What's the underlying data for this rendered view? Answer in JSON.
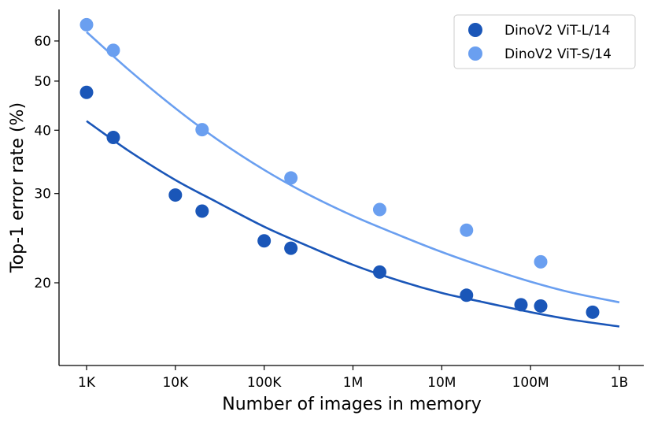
{
  "chart_data": {
    "type": "scatter",
    "xlabel": "Number of images in memory",
    "ylabel": "Top-1 error rate (%)",
    "x_scale": "log",
    "y_scale": "log",
    "xlim": [
      500,
      1000000000
    ],
    "ylim": [
      15.5,
      67
    ],
    "x_ticks": [
      {
        "value": 1000,
        "label": "1K"
      },
      {
        "value": 10000,
        "label": "10K"
      },
      {
        "value": 100000,
        "label": "100K"
      },
      {
        "value": 1000000,
        "label": "1M"
      },
      {
        "value": 10000000,
        "label": "10M"
      },
      {
        "value": 100000000,
        "label": "100M"
      },
      {
        "value": 1000000000,
        "label": "1B"
      }
    ],
    "y_ticks": [
      {
        "value": 20,
        "label": "20"
      },
      {
        "value": 30,
        "label": "30"
      },
      {
        "value": 40,
        "label": "40"
      },
      {
        "value": 50,
        "label": "50"
      },
      {
        "value": 60,
        "label": "60"
      }
    ],
    "grid": false,
    "legend_position": "top-right",
    "series": [
      {
        "name": "DinoV2 ViT-L/14",
        "color": "#1a56b8",
        "points": [
          {
            "x": 1000,
            "y": 47.5
          },
          {
            "x": 2000,
            "y": 38.7
          },
          {
            "x": 10000,
            "y": 29.8
          },
          {
            "x": 20000,
            "y": 27.7
          },
          {
            "x": 100000,
            "y": 24.2
          },
          {
            "x": 200000,
            "y": 23.4
          },
          {
            "x": 2000000,
            "y": 21.0
          },
          {
            "x": 19000000,
            "y": 18.9
          },
          {
            "x": 78000000,
            "y": 18.1
          },
          {
            "x": 130000000,
            "y": 18.0
          },
          {
            "x": 500000000,
            "y": 17.5
          }
        ],
        "fit": [
          {
            "x": 1000,
            "y": 41.7
          },
          {
            "x": 3000,
            "y": 36.4
          },
          {
            "x": 10000,
            "y": 31.9
          },
          {
            "x": 30000,
            "y": 28.8
          },
          {
            "x": 100000,
            "y": 25.8
          },
          {
            "x": 300000,
            "y": 23.7
          },
          {
            "x": 1000000,
            "y": 21.7
          },
          {
            "x": 3000000,
            "y": 20.3
          },
          {
            "x": 10000000,
            "y": 19.1
          },
          {
            "x": 30000000,
            "y": 18.3
          },
          {
            "x": 100000000,
            "y": 17.5
          },
          {
            "x": 300000000,
            "y": 16.9
          },
          {
            "x": 1000000000,
            "y": 16.4
          }
        ]
      },
      {
        "name": "DinoV2 ViT-S/14",
        "color": "#6a9ff0",
        "points": [
          {
            "x": 1000,
            "y": 64.6
          },
          {
            "x": 2000,
            "y": 57.5
          },
          {
            "x": 20000,
            "y": 40.1
          },
          {
            "x": 200000,
            "y": 32.2
          },
          {
            "x": 2000000,
            "y": 27.9
          },
          {
            "x": 19000000,
            "y": 25.4
          },
          {
            "x": 130000000,
            "y": 22.0
          }
        ],
        "fit": [
          {
            "x": 1000,
            "y": 62.5
          },
          {
            "x": 3000,
            "y": 52.6
          },
          {
            "x": 10000,
            "y": 44.2
          },
          {
            "x": 30000,
            "y": 38.3
          },
          {
            "x": 100000,
            "y": 33.4
          },
          {
            "x": 300000,
            "y": 30.0
          },
          {
            "x": 1000000,
            "y": 27.1
          },
          {
            "x": 3000000,
            "y": 25.0
          },
          {
            "x": 10000000,
            "y": 23.0
          },
          {
            "x": 30000000,
            "y": 21.5
          },
          {
            "x": 100000000,
            "y": 20.1
          },
          {
            "x": 300000000,
            "y": 19.1
          },
          {
            "x": 1000000000,
            "y": 18.3
          }
        ]
      }
    ]
  }
}
